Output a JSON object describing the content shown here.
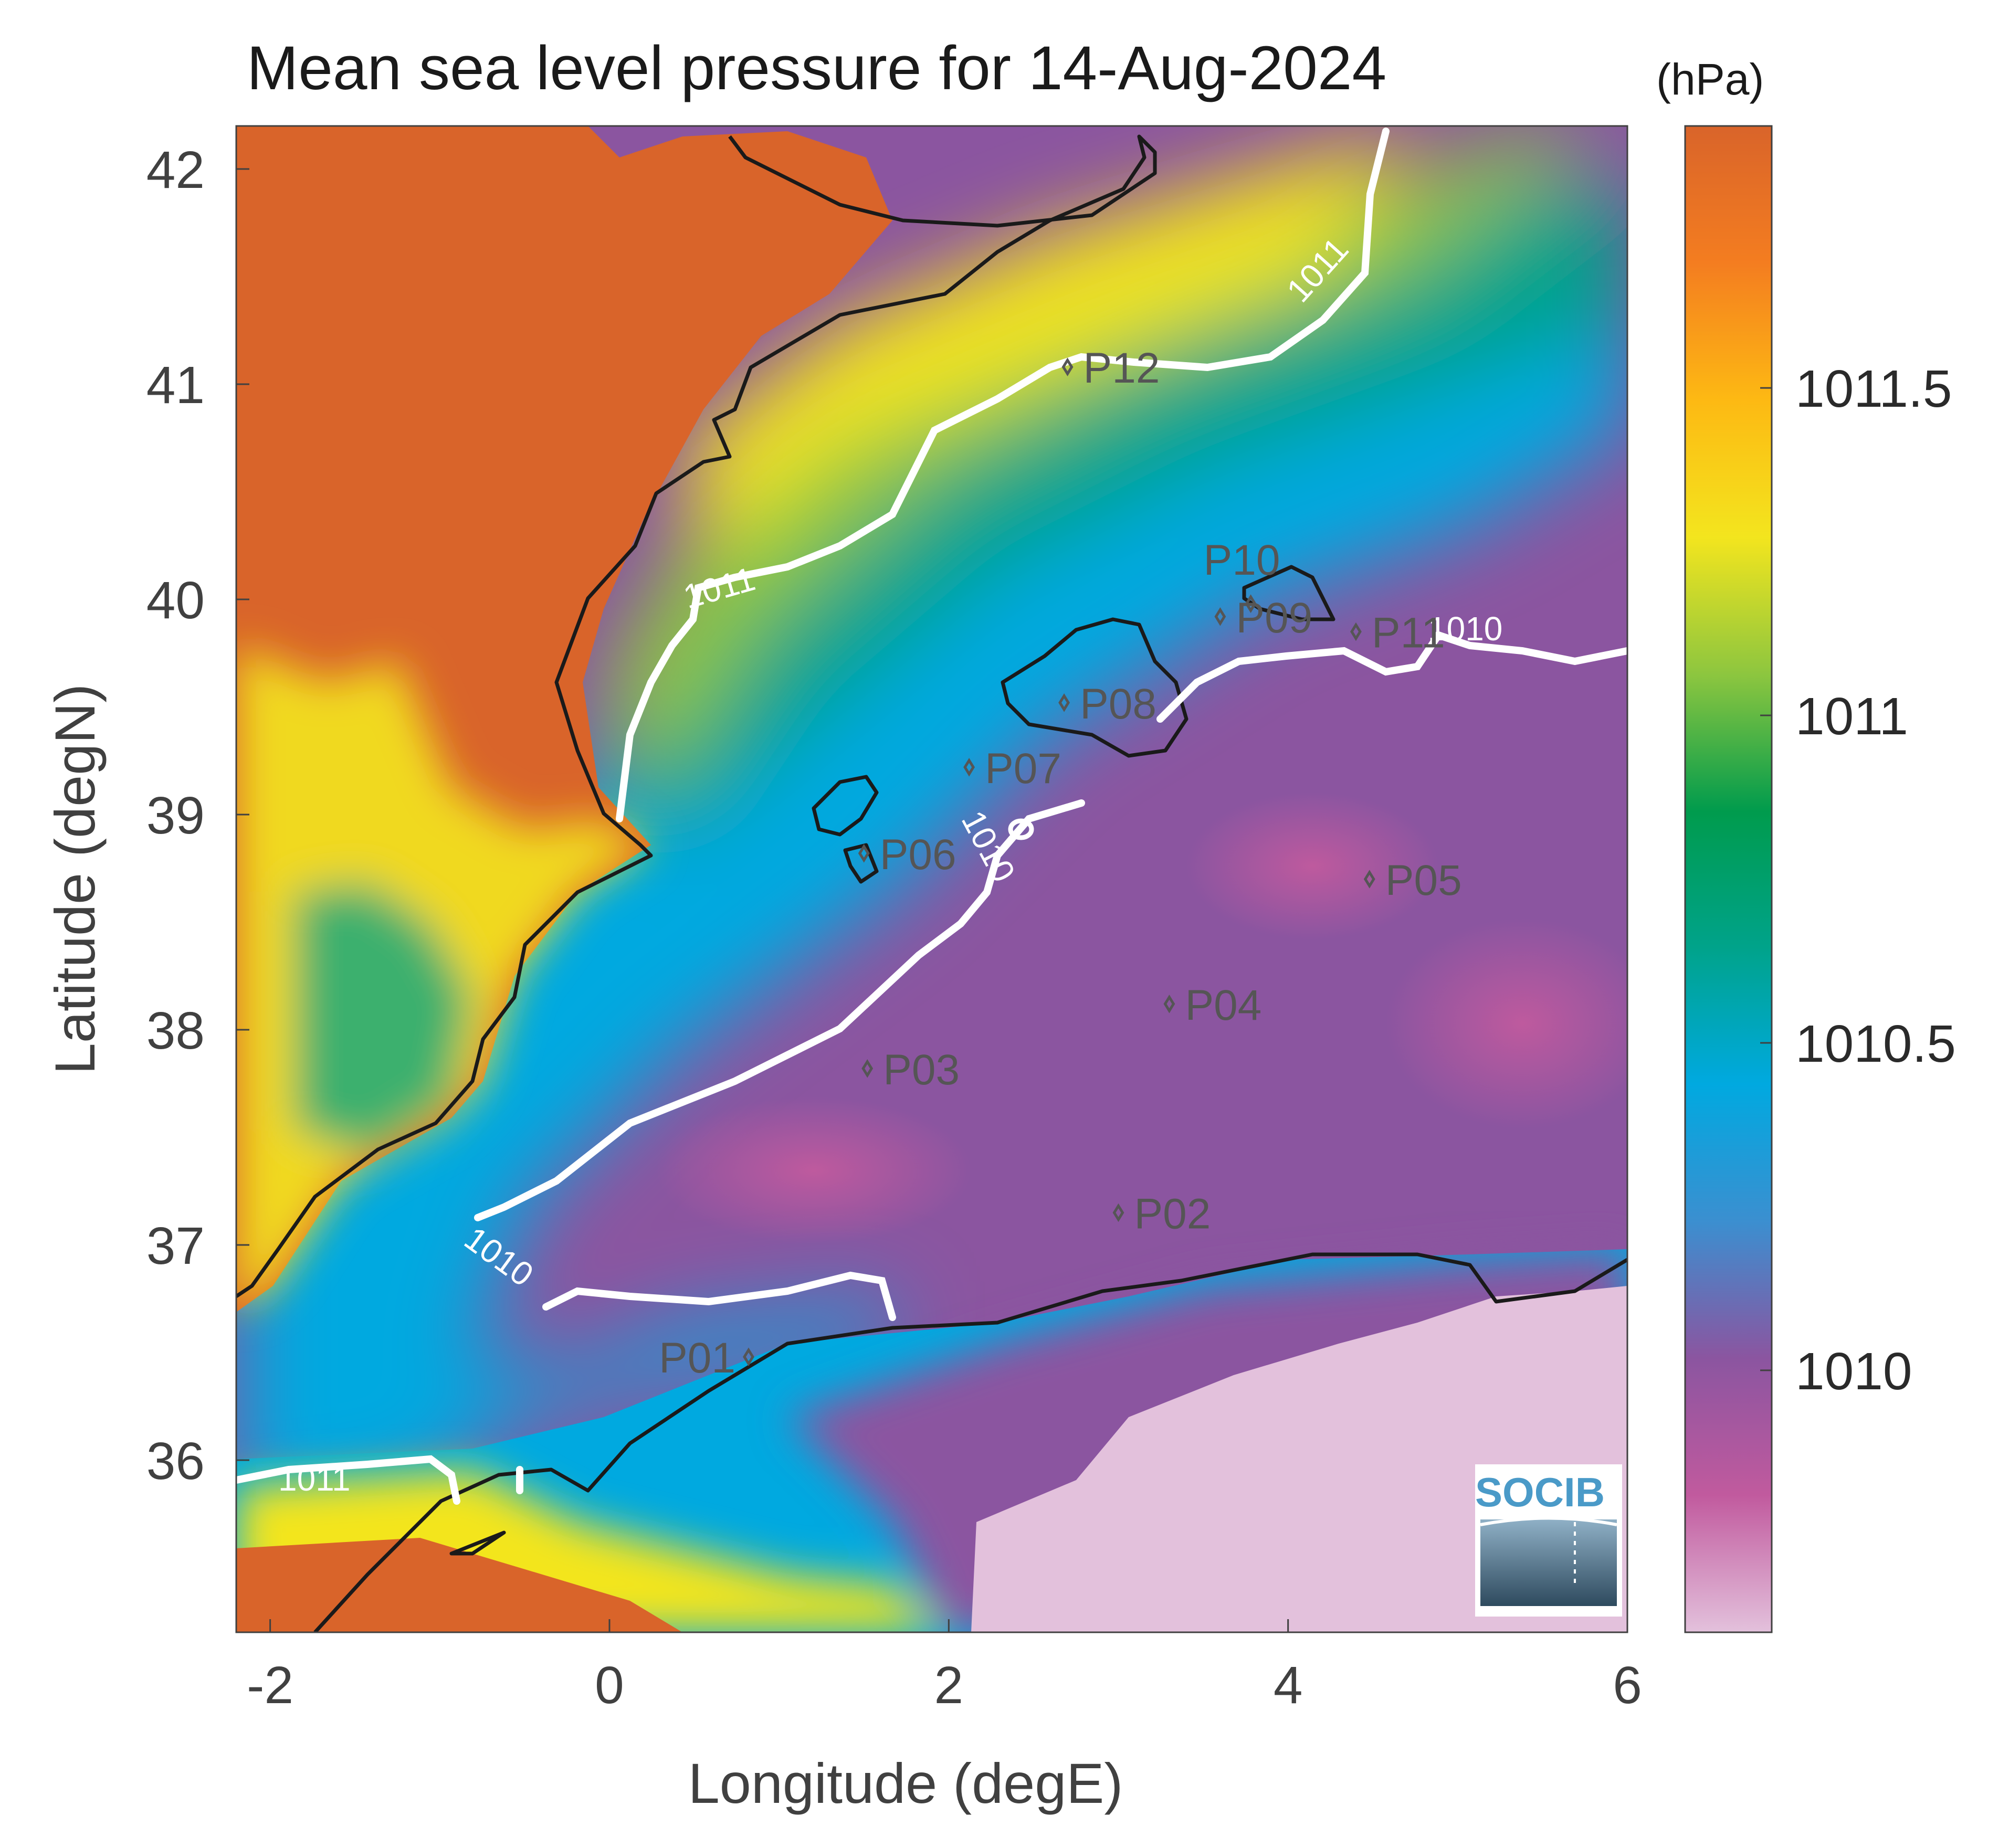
{
  "title": "Mean sea level pressure for 14-Aug-2024",
  "colorbar": {
    "unit": "(hPa)",
    "ticks": [
      "1010",
      "1010.5",
      "1011",
      "1011.5"
    ],
    "tick_values": [
      1010,
      1010.5,
      1011,
      1011.5
    ],
    "range": [
      1009.6,
      1011.9
    ],
    "colors": [
      "#e3c1dc",
      "#c15a9e",
      "#8b55a0",
      "#3b8fd0",
      "#00a9e0",
      "#00a38a",
      "#009b4d",
      "#8dc63f",
      "#f3e51e",
      "#fdb913",
      "#f47d20",
      "#d9642a"
    ]
  },
  "axes": {
    "xlabel": "Longitude (degE)",
    "ylabel": "Latitude (degN)",
    "xticks": [
      "-2",
      "0",
      "2",
      "4",
      "6"
    ],
    "yticks": [
      "36",
      "37",
      "38",
      "39",
      "40",
      "41",
      "42"
    ],
    "xlim": [
      -2.2,
      6.0
    ],
    "ylim": [
      35.2,
      42.2
    ]
  },
  "contours": [
    {
      "level": "1011"
    },
    {
      "level": "1011"
    },
    {
      "level": "1011"
    },
    {
      "level": "1010"
    },
    {
      "level": "1010"
    },
    {
      "level": "1010"
    }
  ],
  "stations": [
    {
      "id": "P01",
      "lon": 0.82,
      "lat": 36.48
    },
    {
      "id": "P02",
      "lon": 3.0,
      "lat": 37.15
    },
    {
      "id": "P03",
      "lon": 1.52,
      "lat": 37.82
    },
    {
      "id": "P04",
      "lon": 3.3,
      "lat": 38.12
    },
    {
      "id": "P05",
      "lon": 4.48,
      "lat": 38.7
    },
    {
      "id": "P06",
      "lon": 1.5,
      "lat": 38.82
    },
    {
      "id": "P07",
      "lon": 2.12,
      "lat": 39.22
    },
    {
      "id": "P08",
      "lon": 2.68,
      "lat": 39.52
    },
    {
      "id": "P09",
      "lon": 3.6,
      "lat": 39.92
    },
    {
      "id": "P10",
      "lon": 3.78,
      "lat": 39.98
    },
    {
      "id": "P11",
      "lon": 4.4,
      "lat": 39.85
    },
    {
      "id": "P12",
      "lon": 2.7,
      "lat": 41.08
    }
  ],
  "logo": "SOCIB"
}
